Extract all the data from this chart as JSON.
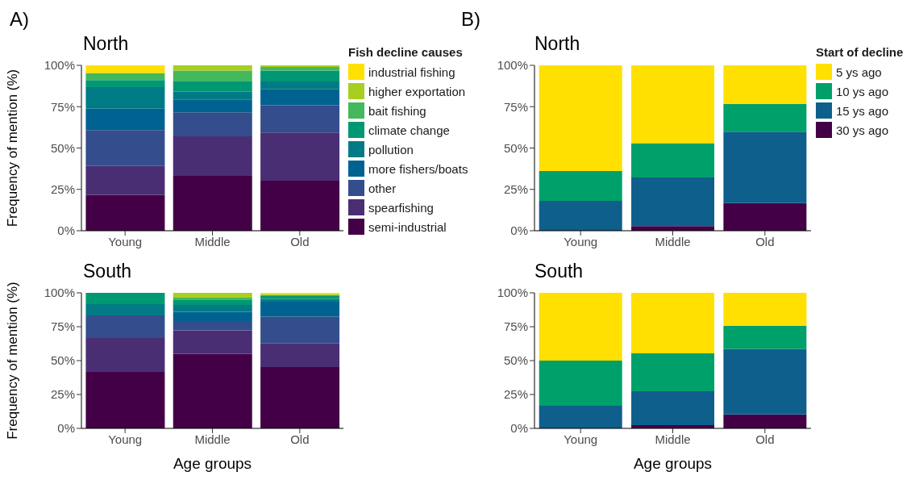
{
  "chart_data": [
    {
      "type": "bar",
      "stacked": true,
      "title": "North",
      "ylabel": "Frequency of mention (%)",
      "annotations": [
        "A)"
      ],
      "legend": "right",
      "legend_title": "Fish decline causes",
      "categories": [
        "Young",
        "Middle",
        "Old"
      ],
      "ylim": [
        0,
        100
      ],
      "yticks": [
        {
          "value": 0,
          "label": "0%"
        },
        {
          "value": 25,
          "label": "25%"
        },
        {
          "value": 50,
          "label": "50%"
        },
        {
          "value": 75,
          "label": "75%"
        },
        {
          "value": 100,
          "label": "100%"
        }
      ],
      "series": [
        {
          "name": "semi-industrial",
          "color": "#440047",
          "values": [
            21.7,
            33.2,
            30.3
          ]
        },
        {
          "name": "spearfishing",
          "color": "#4a2e74",
          "values": [
            17.4,
            23.9,
            29.1
          ]
        },
        {
          "name": "other",
          "color": "#344d8c",
          "values": [
            21.7,
            14.5,
            16.4
          ]
        },
        {
          "name": "more fishers/boats",
          "color": "#006290",
          "values": [
            13.0,
            7.8,
            9.7
          ]
        },
        {
          "name": "pollution",
          "color": "#007b85",
          "values": [
            13.0,
            4.6,
            4.7
          ]
        },
        {
          "name": "climate change",
          "color": "#009873",
          "values": [
            4.3,
            6.6,
            6.6
          ]
        },
        {
          "name": "bait fishing",
          "color": "#44b85c",
          "values": [
            4.3,
            6.2,
            2.2
          ]
        },
        {
          "name": "higher exportation",
          "color": "#a8cf1f",
          "values": [
            0,
            3.2,
            1.0
          ]
        },
        {
          "name": "industrial fishing",
          "color": "#ffe000",
          "values": [
            4.6,
            0,
            0
          ]
        }
      ]
    },
    {
      "type": "bar",
      "stacked": true,
      "title": "South",
      "ylabel": "Frequency of mention (%)",
      "xlabel": "Age groups",
      "legend": false,
      "categories": [
        "Young",
        "Middle",
        "Old"
      ],
      "ylim": [
        0,
        100
      ],
      "yticks": [
        {
          "value": 0,
          "label": "0%"
        },
        {
          "value": 25,
          "label": "25%"
        },
        {
          "value": 50,
          "label": "50%"
        },
        {
          "value": 75,
          "label": "75%"
        },
        {
          "value": 100,
          "label": "100%"
        }
      ],
      "series": [
        {
          "color": "#440047",
          "values": [
            41.7,
            55.0,
            45.2
          ]
        },
        {
          "color": "#4a2e74",
          "values": [
            25.0,
            17.3,
            17.5
          ]
        },
        {
          "color": "#344d8c",
          "values": [
            16.7,
            6.9,
            19.8
          ]
        },
        {
          "color": "#006290",
          "values": [
            0,
            6.8,
            10.9
          ]
        },
        {
          "color": "#007b85",
          "values": [
            8.3,
            5.0,
            2.2
          ]
        },
        {
          "color": "#009873",
          "values": [
            8.3,
            3.6,
            2.0
          ]
        },
        {
          "color": "#44b85c",
          "values": [
            0,
            1.9,
            1.1
          ]
        },
        {
          "color": "#a8cf1f",
          "values": [
            0,
            3.5,
            0
          ]
        },
        {
          "color": "#ffe000",
          "values": [
            0,
            0,
            1.3
          ]
        }
      ]
    },
    {
      "type": "bar",
      "stacked": true,
      "title": "North",
      "annotations": [
        "B)"
      ],
      "legend": "right",
      "legend_title": "Start of decline",
      "categories": [
        "Young",
        "Middle",
        "Old"
      ],
      "ylim": [
        0,
        100
      ],
      "yticks": [
        {
          "value": 0,
          "label": "0%"
        },
        {
          "value": 25,
          "label": "25%"
        },
        {
          "value": 50,
          "label": "50%"
        },
        {
          "value": 75,
          "label": "75%"
        },
        {
          "value": 100,
          "label": "100%"
        }
      ],
      "series": [
        {
          "name": "30 ys ago",
          "color": "#440047",
          "values": [
            0,
            2.8,
            16.7
          ]
        },
        {
          "name": "15 ys ago",
          "color": "#0e5f8c",
          "values": [
            18.0,
            29.4,
            43.2
          ]
        },
        {
          "name": "10 ys ago",
          "color": "#00a06a",
          "values": [
            18.1,
            20.7,
            16.8
          ]
        },
        {
          "name": "5 ys ago",
          "color": "#ffe000",
          "values": [
            63.9,
            47.1,
            23.3
          ]
        }
      ]
    },
    {
      "type": "bar",
      "stacked": true,
      "title": "South",
      "xlabel": "Age groups",
      "legend": false,
      "categories": [
        "Young",
        "Middle",
        "Old"
      ],
      "ylim": [
        0,
        100
      ],
      "yticks": [
        {
          "value": 0,
          "label": "0%"
        },
        {
          "value": 25,
          "label": "25%"
        },
        {
          "value": 50,
          "label": "50%"
        },
        {
          "value": 75,
          "label": "75%"
        },
        {
          "value": 100,
          "label": "100%"
        }
      ],
      "series": [
        {
          "color": "#440047",
          "values": [
            0,
            2.4,
            10.2
          ]
        },
        {
          "color": "#0e5f8c",
          "values": [
            16.7,
            25.0,
            48.3
          ]
        },
        {
          "color": "#00a06a",
          "values": [
            33.3,
            28.0,
            17.2
          ]
        },
        {
          "color": "#ffe000",
          "values": [
            50.0,
            44.6,
            24.3
          ]
        }
      ]
    }
  ]
}
